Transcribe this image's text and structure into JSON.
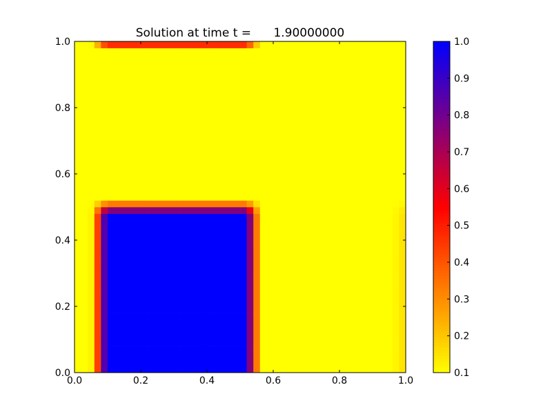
{
  "chart_data": {
    "type": "heatmap",
    "title": "Solution at time t =      1.90000000",
    "xlabel": "",
    "ylabel": "",
    "xlim": [
      0.0,
      1.0
    ],
    "ylim": [
      0.0,
      1.0
    ],
    "x_ticks": [
      "0.0",
      "0.2",
      "0.4",
      "0.6",
      "0.8",
      "1.0"
    ],
    "y_ticks": [
      "0.0",
      "0.2",
      "0.4",
      "0.6",
      "0.8",
      "1.0"
    ],
    "grid": false,
    "grid_resolution": 50,
    "value_range": [
      0.1,
      1.0
    ],
    "background_value": 0.1,
    "regions": [
      {
        "name": "lower-left square",
        "x": [
          0.075,
          0.54
        ],
        "y": [
          0.0,
          0.5
        ],
        "peak_value": 1.0
      },
      {
        "name": "top edge strip",
        "x": [
          0.075,
          0.54
        ],
        "y": [
          0.985,
          1.0
        ],
        "peak_value": 0.6
      },
      {
        "name": "right edge strip",
        "x": [
          0.985,
          1.0
        ],
        "y": [
          0.0,
          0.5
        ],
        "peak_value": 0.2
      }
    ],
    "colormap": [
      "#ffff00",
      "#ff0000",
      "#0000ff"
    ],
    "colorbar": {
      "range": [
        0.1,
        1.0
      ],
      "ticks": [
        "0.1",
        "0.2",
        "0.3",
        "0.4",
        "0.5",
        "0.6",
        "0.7",
        "0.8",
        "0.9",
        "1.0"
      ]
    }
  }
}
